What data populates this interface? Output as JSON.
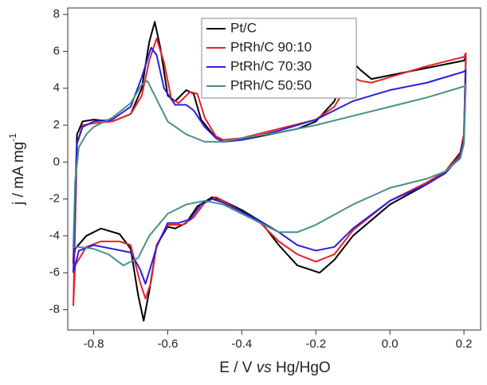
{
  "chart_data": {
    "type": "line",
    "x_label": [
      "E / V ",
      "vs",
      " Hg/HgO"
    ],
    "y_label": [
      "j / mA mg",
      "-1"
    ],
    "xlim": [
      -0.87,
      0.245
    ],
    "ylim": [
      -9.1,
      8.35
    ],
    "xticks": [
      -0.8,
      -0.6,
      -0.4,
      -0.2,
      {
        "value": 0,
        "label": "0.0"
      },
      0.2
    ],
    "yticks": [
      -8,
      -6,
      -4,
      -2,
      0,
      2,
      4,
      6,
      8
    ],
    "legend": "top",
    "series": [
      {
        "name": "Pt/C",
        "color": "#000000",
        "x": [
          -0.855,
          -0.845,
          -0.83,
          -0.8,
          -0.75,
          -0.7,
          -0.67,
          -0.65,
          -0.635,
          -0.62,
          -0.6,
          -0.58,
          -0.55,
          -0.53,
          -0.51,
          -0.47,
          -0.45,
          -0.4,
          -0.3,
          -0.25,
          -0.2,
          -0.15,
          -0.12,
          -0.1,
          -0.08,
          -0.05,
          0.0,
          0.1,
          0.2,
          0.205,
          0.2,
          0.19,
          0.15,
          0.1,
          0.0,
          -0.1,
          -0.15,
          -0.19,
          -0.25,
          -0.3,
          -0.35,
          -0.4,
          -0.45,
          -0.48,
          -0.52,
          -0.55,
          -0.58,
          -0.6,
          -0.63,
          -0.65,
          -0.665,
          -0.68,
          -0.7,
          -0.73,
          -0.78,
          -0.82,
          -0.85,
          -0.855
        ],
        "values": [
          -5.5,
          1.5,
          2.2,
          2.3,
          2.2,
          2.6,
          4,
          6.5,
          7.6,
          6.2,
          3.6,
          3.3,
          3.9,
          3.7,
          2.3,
          1.3,
          1.1,
          1.2,
          1.6,
          1.8,
          2.2,
          3.3,
          4.8,
          5.4,
          5.0,
          4.5,
          4.7,
          5.1,
          5.5,
          5.7,
          1.5,
          0.5,
          -0.5,
          -1.2,
          -2.3,
          -4,
          -5.3,
          -6,
          -5.6,
          -4.5,
          -3.2,
          -2.6,
          -2.1,
          -1.9,
          -2.4,
          -3.3,
          -3.6,
          -3.5,
          -4.5,
          -7,
          -8.6,
          -7.2,
          -4.7,
          -3.9,
          -3.6,
          -4,
          -4.7,
          -5.5
        ]
      },
      {
        "name": "PtRh/C 90:10",
        "color": "#e8232a",
        "x": [
          -0.855,
          -0.845,
          -0.83,
          -0.8,
          -0.75,
          -0.7,
          -0.67,
          -0.65,
          -0.63,
          -0.61,
          -0.59,
          -0.57,
          -0.54,
          -0.52,
          -0.5,
          -0.47,
          -0.45,
          -0.4,
          -0.3,
          -0.2,
          -0.15,
          -0.12,
          -0.1,
          -0.08,
          -0.05,
          0.0,
          0.1,
          0.2,
          0.205,
          0.2,
          0.19,
          0.15,
          0.1,
          0.0,
          -0.1,
          -0.15,
          -0.2,
          -0.25,
          -0.3,
          -0.35,
          -0.4,
          -0.45,
          -0.47,
          -0.5,
          -0.53,
          -0.56,
          -0.6,
          -0.63,
          -0.645,
          -0.66,
          -0.675,
          -0.7,
          -0.73,
          -0.78,
          -0.82,
          -0.85,
          -0.855
        ],
        "values": [
          -7.8,
          1,
          2,
          2.1,
          2.2,
          2.6,
          3.6,
          5.5,
          6.7,
          5.4,
          3.4,
          3.2,
          3.8,
          3.7,
          2.4,
          1.4,
          1.2,
          1.3,
          1.8,
          2.3,
          3.0,
          4.0,
          4.6,
          4.4,
          4.3,
          4.6,
          5.2,
          5.7,
          5.9,
          1.4,
          0.4,
          -0.5,
          -1.1,
          -2.1,
          -3.7,
          -5,
          -5.4,
          -5.0,
          -4.3,
          -3.3,
          -2.7,
          -2.1,
          -1.9,
          -2.2,
          -3,
          -3.4,
          -3.4,
          -4.5,
          -6.5,
          -7.4,
          -6.5,
          -4.5,
          -4.3,
          -4.3,
          -4.6,
          -5.6,
          -7.8
        ]
      },
      {
        "name": "PtRh/C 70:30",
        "color": "#2a1ee0",
        "x": [
          -0.855,
          -0.845,
          -0.83,
          -0.8,
          -0.75,
          -0.7,
          -0.67,
          -0.645,
          -0.63,
          -0.61,
          -0.58,
          -0.55,
          -0.53,
          -0.5,
          -0.47,
          -0.45,
          -0.4,
          -0.3,
          -0.2,
          -0.15,
          -0.1,
          -0.05,
          0.0,
          0.1,
          0.2,
          0.205,
          0.2,
          0.19,
          0.15,
          0.1,
          0.0,
          -0.1,
          -0.15,
          -0.2,
          -0.25,
          -0.3,
          -0.35,
          -0.4,
          -0.45,
          -0.48,
          -0.51,
          -0.54,
          -0.57,
          -0.6,
          -0.63,
          -0.66,
          -0.675,
          -0.7,
          -0.75,
          -0.8,
          -0.84,
          -0.855
        ],
        "values": [
          -6,
          1,
          1.9,
          2.2,
          2.3,
          3,
          4.6,
          6.2,
          5.8,
          4,
          3.1,
          3.1,
          2.8,
          1.9,
          1.3,
          1.1,
          1.2,
          1.7,
          2.3,
          2.8,
          3.3,
          3.6,
          3.9,
          4.3,
          4.9,
          5.0,
          1.2,
          0.3,
          -0.6,
          -1.2,
          -2.1,
          -3.6,
          -4.6,
          -4.8,
          -4.5,
          -3.8,
          -3.2,
          -2.7,
          -2.2,
          -2.0,
          -2.3,
          -3.1,
          -3.3,
          -3.3,
          -4.6,
          -6.6,
          -5.8,
          -4.9,
          -4.7,
          -4.5,
          -4.8,
          -6
        ]
      },
      {
        "name": "PtRh/C 50:50",
        "color": "#4a8f8a",
        "x": [
          -0.855,
          -0.85,
          -0.84,
          -0.82,
          -0.8,
          -0.75,
          -0.7,
          -0.67,
          -0.655,
          -0.64,
          -0.6,
          -0.55,
          -0.5,
          -0.45,
          -0.4,
          -0.3,
          -0.2,
          -0.1,
          0.0,
          0.1,
          0.2,
          0.205,
          0.2,
          0.19,
          0.15,
          0.1,
          0.0,
          -0.1,
          -0.2,
          -0.25,
          -0.3,
          -0.35,
          -0.4,
          -0.45,
          -0.5,
          -0.55,
          -0.6,
          -0.65,
          -0.68,
          -0.72,
          -0.76,
          -0.8,
          -0.84,
          -0.855
        ],
        "values": [
          -4.6,
          -1,
          0.8,
          1.5,
          1.9,
          2.4,
          3.2,
          4.2,
          4.4,
          3.8,
          2.2,
          1.5,
          1.1,
          1.1,
          1.3,
          1.6,
          2.0,
          2.5,
          3.0,
          3.5,
          4.1,
          4.2,
          1.0,
          0.2,
          -0.5,
          -0.9,
          -1.4,
          -2.3,
          -3.4,
          -3.8,
          -3.8,
          -3.3,
          -2.8,
          -2.3,
          -2.1,
          -2.3,
          -2.8,
          -4,
          -5.2,
          -5.6,
          -5,
          -4.7,
          -4.6,
          -4.6
        ]
      }
    ]
  }
}
